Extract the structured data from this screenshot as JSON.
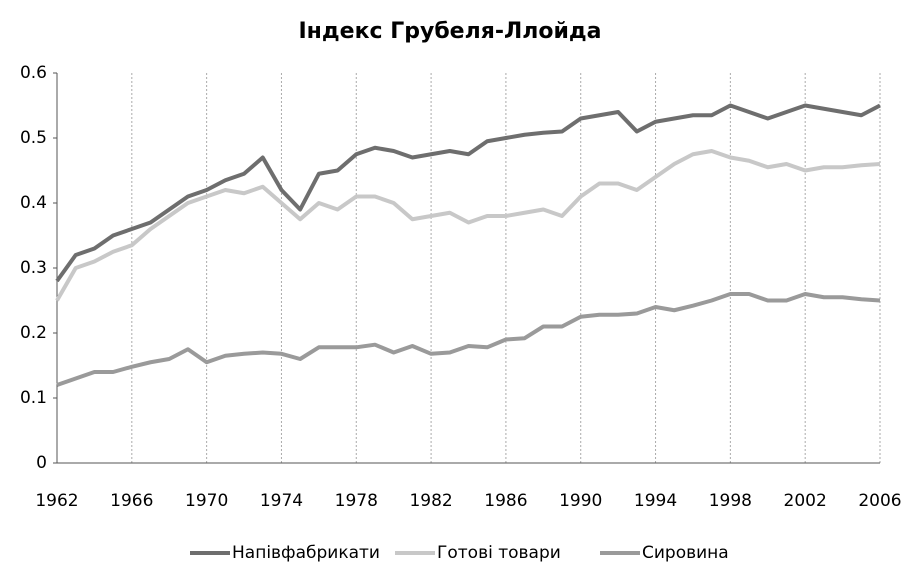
{
  "chart_data": {
    "type": "line",
    "title": "Індекс Грубеля-Ллойда",
    "x": [
      1962,
      1963,
      1964,
      1965,
      1966,
      1967,
      1968,
      1969,
      1970,
      1971,
      1972,
      1973,
      1974,
      1975,
      1976,
      1977,
      1978,
      1979,
      1980,
      1981,
      1982,
      1983,
      1984,
      1985,
      1986,
      1987,
      1988,
      1989,
      1990,
      1991,
      1992,
      1993,
      1994,
      1995,
      1996,
      1997,
      1998,
      1999,
      2000,
      2001,
      2002,
      2003,
      2004,
      2005,
      2006
    ],
    "series": [
      {
        "name": "Напівфабрикати",
        "color": "#6e6e6e",
        "values": [
          0.28,
          0.32,
          0.33,
          0.35,
          0.36,
          0.37,
          0.39,
          0.41,
          0.42,
          0.435,
          0.445,
          0.47,
          0.42,
          0.39,
          0.445,
          0.45,
          0.475,
          0.485,
          0.48,
          0.47,
          0.475,
          0.48,
          0.475,
          0.495,
          0.5,
          0.505,
          0.508,
          0.51,
          0.53,
          0.535,
          0.54,
          0.51,
          0.525,
          0.53,
          0.535,
          0.535,
          0.55,
          0.54,
          0.53,
          0.54,
          0.55,
          0.545,
          0.54,
          0.535,
          0.55
        ]
      },
      {
        "name": "Готові товари",
        "color": "#c8c8c8",
        "values": [
          0.25,
          0.3,
          0.31,
          0.325,
          0.335,
          0.36,
          0.38,
          0.4,
          0.41,
          0.42,
          0.415,
          0.425,
          0.4,
          0.375,
          0.4,
          0.39,
          0.41,
          0.41,
          0.4,
          0.375,
          0.38,
          0.385,
          0.37,
          0.38,
          0.38,
          0.385,
          0.39,
          0.38,
          0.41,
          0.43,
          0.43,
          0.42,
          0.44,
          0.46,
          0.475,
          0.48,
          0.47,
          0.465,
          0.455,
          0.46,
          0.45,
          0.455,
          0.455,
          0.458,
          0.46
        ]
      },
      {
        "name": "Сировина",
        "color": "#9a9a9a",
        "values": [
          0.12,
          0.13,
          0.14,
          0.14,
          0.148,
          0.155,
          0.16,
          0.175,
          0.155,
          0.165,
          0.168,
          0.17,
          0.168,
          0.16,
          0.178,
          0.178,
          0.178,
          0.182,
          0.17,
          0.18,
          0.168,
          0.17,
          0.18,
          0.178,
          0.19,
          0.192,
          0.21,
          0.21,
          0.225,
          0.228,
          0.228,
          0.23,
          0.24,
          0.235,
          0.242,
          0.25,
          0.26,
          0.26,
          0.25,
          0.25,
          0.26,
          0.255,
          0.255,
          0.252,
          0.25
        ]
      }
    ],
    "xlim": [
      1962,
      2006
    ],
    "xticks": [
      1962,
      1966,
      1970,
      1974,
      1978,
      1982,
      1986,
      1990,
      1994,
      1998,
      2002,
      2006
    ],
    "ylim": [
      0,
      0.6
    ],
    "yticks": [
      0,
      0.1,
      0.2,
      0.3,
      0.4,
      0.5,
      0.6
    ],
    "grid": true,
    "legend": "bottom"
  }
}
